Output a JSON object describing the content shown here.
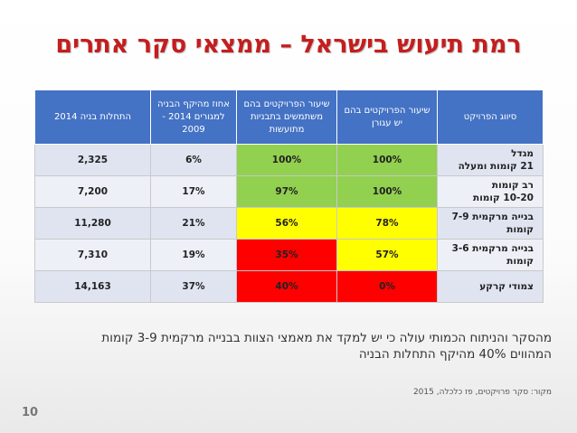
{
  "title": "רמת תיעוש בישראל – ממצאי סקר אתרים",
  "table": {
    "headers": [
      "סיווג הפרויקט",
      "שיעור הפרויקטים בהם יש עגורן",
      "שיעור הפרויקטים בהם משתמשים בתבניות מתועשות",
      "אחוז מהיקף הבניה למגורים 2014 - 2009",
      "התחלות בניה 2014"
    ],
    "rows": [
      {
        "type_line1": "מגדל",
        "type_line2": "21 קומות ומעלה",
        "crane": "100%",
        "formwork": "100%",
        "share": "6%",
        "starts": "2,325"
      },
      {
        "type_line1": "רב קומות",
        "type_line2": "10-20 קומות",
        "crane": "100%",
        "formwork": "97%",
        "share": "17%",
        "starts": "7,200"
      },
      {
        "type_line1": "בנייה מרקמית 7-9",
        "type_line2": "קומות",
        "crane": "78%",
        "formwork": "56%",
        "share": "21%",
        "starts": "11,280"
      },
      {
        "type_line1": "בנייה מרקמית 3-6",
        "type_line2": "קומות",
        "crane": "57%",
        "formwork": "35%",
        "share": "19%",
        "starts": "7,310"
      },
      {
        "type_line1": "צמודי קרקע",
        "type_line2": "",
        "crane": "0%",
        "formwork": "40%",
        "share": "37%",
        "starts": "14,163"
      }
    ]
  },
  "note": {
    "line1": "מהסקר והניתוח הכמותי עולה כי יש למקד את מאמצי הצוות בבנייה מרקמית 3-9 קומות",
    "line2": "המהווים 40% מהיקף התחלות הבניה"
  },
  "source": "מקור: סקר פרויקטים, פז כלכלה, 2015",
  "page_number": "10",
  "colors": {
    "title": "#c41e1e",
    "header_bg": "#4472c4",
    "green": "#92d050",
    "yellow": "#ffff00",
    "red": "#ff0000"
  }
}
